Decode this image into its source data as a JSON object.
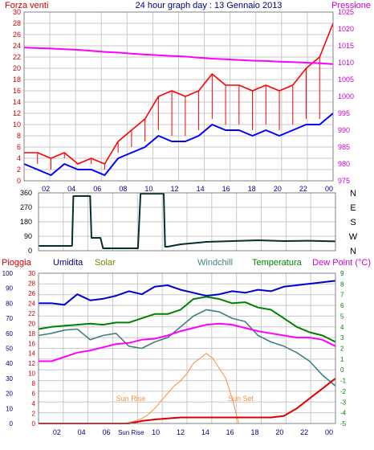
{
  "colors": {
    "wind": "#ff0000",
    "gust": "#ff0000",
    "wind_avg": "#0000ff",
    "pressure": "#ff00ff",
    "direction": "#003030",
    "rain": "#dd0000",
    "humidity": "#0000cc",
    "solar": "#ff8c3a",
    "windchill": "#408080",
    "temperature": "#008000",
    "dewpoint": "#ff00ff",
    "grid": "#c8c8c8",
    "panel_bg": "#ffffff",
    "label_red": "#cc0000",
    "label_navy": "#000080",
    "label_olive": "#808000",
    "label_teal": "#408080",
    "label_green": "#008000",
    "label_magenta": "#cc00cc"
  },
  "chart_data": [
    {
      "type": "line",
      "id": "wind-pressure",
      "title": "24 hour graph day : 13 Gennaio 2013",
      "left_label": "Forza venti",
      "right_label": "Pressione",
      "x_ticks": [
        "02",
        "04",
        "06",
        "08",
        "10",
        "12",
        "14",
        "16",
        "18",
        "20",
        "22",
        "00"
      ],
      "x_range": [
        1,
        24
      ],
      "y_left": {
        "ticks": [
          "0",
          "2",
          "4",
          "6",
          "8",
          "10",
          "12",
          "14",
          "16",
          "18",
          "20",
          "22",
          "24",
          "26",
          "28",
          "30"
        ],
        "range": [
          0,
          30
        ]
      },
      "y_right": {
        "ticks": [
          "975",
          "980",
          "985",
          "990",
          "995",
          "1000",
          "1005",
          "1010",
          "1015",
          "1020",
          "1025"
        ],
        "range": [
          975,
          1025
        ]
      },
      "series": [
        {
          "key": "gust",
          "x": [
            1,
            2,
            3,
            4,
            5,
            6,
            7,
            8,
            9,
            10,
            11,
            12,
            13,
            14,
            15,
            16,
            17,
            18,
            19,
            20,
            21,
            22,
            23,
            24
          ],
          "y": [
            5,
            5,
            4,
            5,
            3,
            4,
            3,
            7,
            9,
            11,
            15,
            16,
            15,
            16,
            19,
            17,
            17,
            16,
            17,
            16,
            17,
            20,
            22,
            28
          ]
        },
        {
          "key": "wind_avg",
          "x": [
            1,
            2,
            3,
            4,
            5,
            6,
            7,
            8,
            9,
            10,
            11,
            12,
            13,
            14,
            15,
            16,
            17,
            18,
            19,
            20,
            21,
            22,
            23,
            24
          ],
          "y": [
            3,
            2,
            1,
            3,
            2,
            2,
            1,
            4,
            5,
            6,
            8,
            7,
            7,
            8,
            10,
            9,
            9,
            8,
            9,
            8,
            9,
            10,
            10,
            12
          ]
        },
        {
          "key": "pressure",
          "x": [
            1,
            2,
            3,
            4,
            5,
            6,
            7,
            8,
            9,
            10,
            11,
            12,
            13,
            14,
            15,
            16,
            17,
            18,
            19,
            20,
            21,
            22,
            23,
            24
          ],
          "y": [
            1014.5,
            1014.3,
            1014.2,
            1014,
            1013.8,
            1013.5,
            1013.2,
            1013,
            1012.7,
            1012.4,
            1012.2,
            1012,
            1011.8,
            1011.5,
            1011.2,
            1011,
            1010.8,
            1010.6,
            1010.5,
            1010.3,
            1010.2,
            1010,
            1009.8,
            1009.6
          ]
        }
      ]
    },
    {
      "type": "line",
      "id": "wind-direction",
      "y_left": {
        "ticks": [
          "0",
          "90",
          "180",
          "270",
          "360"
        ],
        "range": [
          0,
          360
        ]
      },
      "y_right_labels": [
        "N",
        "W",
        "S",
        "E",
        "N"
      ],
      "x_range": [
        1,
        24
      ],
      "series": [
        {
          "key": "direction",
          "x": [
            1,
            3,
            3.6,
            3.7,
            5,
            5.1,
            5.8,
            6,
            7,
            8.5,
            8.7,
            8.9,
            10.7,
            10.8,
            11,
            12,
            14,
            16,
            18,
            20,
            22,
            24
          ],
          "y": [
            30,
            30,
            30,
            340,
            340,
            80,
            80,
            15,
            15,
            15,
            15,
            355,
            355,
            25,
            25,
            40,
            55,
            60,
            65,
            60,
            62,
            58
          ]
        }
      ]
    },
    {
      "type": "line",
      "id": "weather",
      "labels": [
        "Pioggia",
        "Umidita",
        "Solar",
        "Windchill",
        "Temperatura",
        "Dew Point (°C)"
      ],
      "annotations": [
        "Sun Rise",
        "Sun Set"
      ],
      "x_ticks": [
        "02",
        "04",
        "06",
        "Sun Rise",
        "10",
        "12",
        "14",
        "16",
        "18",
        "20",
        "22",
        "00"
      ],
      "x_range": [
        1,
        24
      ],
      "y_rain": {
        "ticks": [
          "0",
          "2",
          "4",
          "6",
          "8",
          "10",
          "12",
          "14",
          "16",
          "18",
          "20",
          "22",
          "24",
          "26",
          "28",
          "30"
        ],
        "range": [
          0,
          30
        ]
      },
      "y_hum": {
        "ticks": [
          "0",
          "10",
          "20",
          "30",
          "40",
          "50",
          "60",
          "70",
          "80",
          "90",
          "100"
        ],
        "range": [
          0,
          100
        ]
      },
      "y_right": {
        "ticks": [
          "-5",
          "-4",
          "-3",
          "-2",
          "-1",
          "0",
          "1",
          "2",
          "3",
          "4",
          "5",
          "6",
          "7",
          "8",
          "9"
        ],
        "range": [
          -5,
          9
        ]
      },
      "series": [
        {
          "key": "humidity",
          "x": [
            1,
            2,
            3,
            4,
            5,
            6,
            7,
            8,
            9,
            10,
            11,
            12,
            13,
            14,
            15,
            16,
            17,
            18,
            19,
            20,
            21,
            22,
            23,
            24
          ],
          "y": [
            80,
            80,
            79,
            86,
            82,
            83,
            85,
            88,
            86,
            91,
            92,
            89,
            87,
            85,
            86,
            88,
            87,
            89,
            88,
            91,
            92,
            93,
            94,
            95
          ]
        },
        {
          "key": "temperature",
          "x": [
            1,
            2,
            3,
            4,
            5,
            6,
            7,
            8,
            9,
            10,
            11,
            12,
            13,
            14,
            15,
            16,
            17,
            18,
            19,
            20,
            21,
            22,
            23,
            24
          ],
          "y": [
            3.8,
            4,
            4.1,
            4.2,
            4.3,
            4.2,
            4.4,
            4.4,
            4.8,
            5.2,
            5.2,
            5.6,
            6.6,
            6.8,
            6.6,
            6.2,
            6.3,
            5.8,
            5.6,
            4.8,
            4,
            3.5,
            3.2,
            2.6
          ]
        },
        {
          "key": "windchill",
          "x": [
            1,
            2,
            3,
            4,
            5,
            6,
            7,
            8,
            9,
            10,
            11,
            12,
            13,
            14,
            15,
            16,
            17,
            18,
            19,
            20,
            21,
            22,
            23,
            24
          ],
          "y": [
            3.2,
            3.4,
            3.7,
            3.8,
            2.8,
            3.2,
            3.4,
            2.2,
            2,
            2.6,
            3,
            4,
            5,
            5.6,
            5.4,
            4.8,
            4.5,
            3.2,
            2.6,
            2.2,
            1.6,
            0.8,
            -0.5,
            -1.5
          ]
        },
        {
          "key": "dewpoint",
          "x": [
            1,
            2,
            3,
            4,
            5,
            6,
            7,
            8,
            9,
            10,
            11,
            12,
            13,
            14,
            15,
            16,
            17,
            18,
            19,
            20,
            21,
            22,
            23,
            24
          ],
          "y": [
            0.8,
            0.8,
            1.2,
            1.6,
            1.8,
            2.1,
            2.4,
            2.5,
            2.8,
            2.9,
            3.2,
            3.6,
            3.9,
            4.2,
            4.3,
            4.2,
            3.9,
            3.6,
            3.4,
            3.2,
            3,
            3,
            2.8,
            2.2
          ]
        },
        {
          "key": "solar",
          "x": [
            7.5,
            8,
            8.5,
            9,
            9.5,
            10,
            10.5,
            11,
            11.5,
            12,
            12.5,
            13,
            13.5,
            14,
            14.5,
            15,
            15.5,
            16,
            16.5
          ],
          "y": [
            0,
            0.2,
            0.5,
            1,
            1.8,
            3,
            4.5,
            6,
            7.5,
            8.5,
            10,
            12,
            13,
            14,
            13,
            11,
            9,
            5,
            0
          ]
        },
        {
          "key": "rain",
          "x": [
            1,
            2,
            3,
            4,
            5,
            6,
            7,
            8,
            9,
            10,
            11,
            12,
            13,
            14,
            15,
            16,
            17,
            18,
            19,
            20,
            21,
            22,
            23,
            24
          ],
          "y": [
            0,
            0,
            0,
            0,
            0,
            0,
            0,
            0,
            0.5,
            0.8,
            1,
            1.2,
            1.2,
            1.2,
            1.2,
            1.2,
            1.2,
            1.2,
            1.2,
            1.5,
            3,
            5,
            7,
            9
          ]
        }
      ]
    }
  ]
}
